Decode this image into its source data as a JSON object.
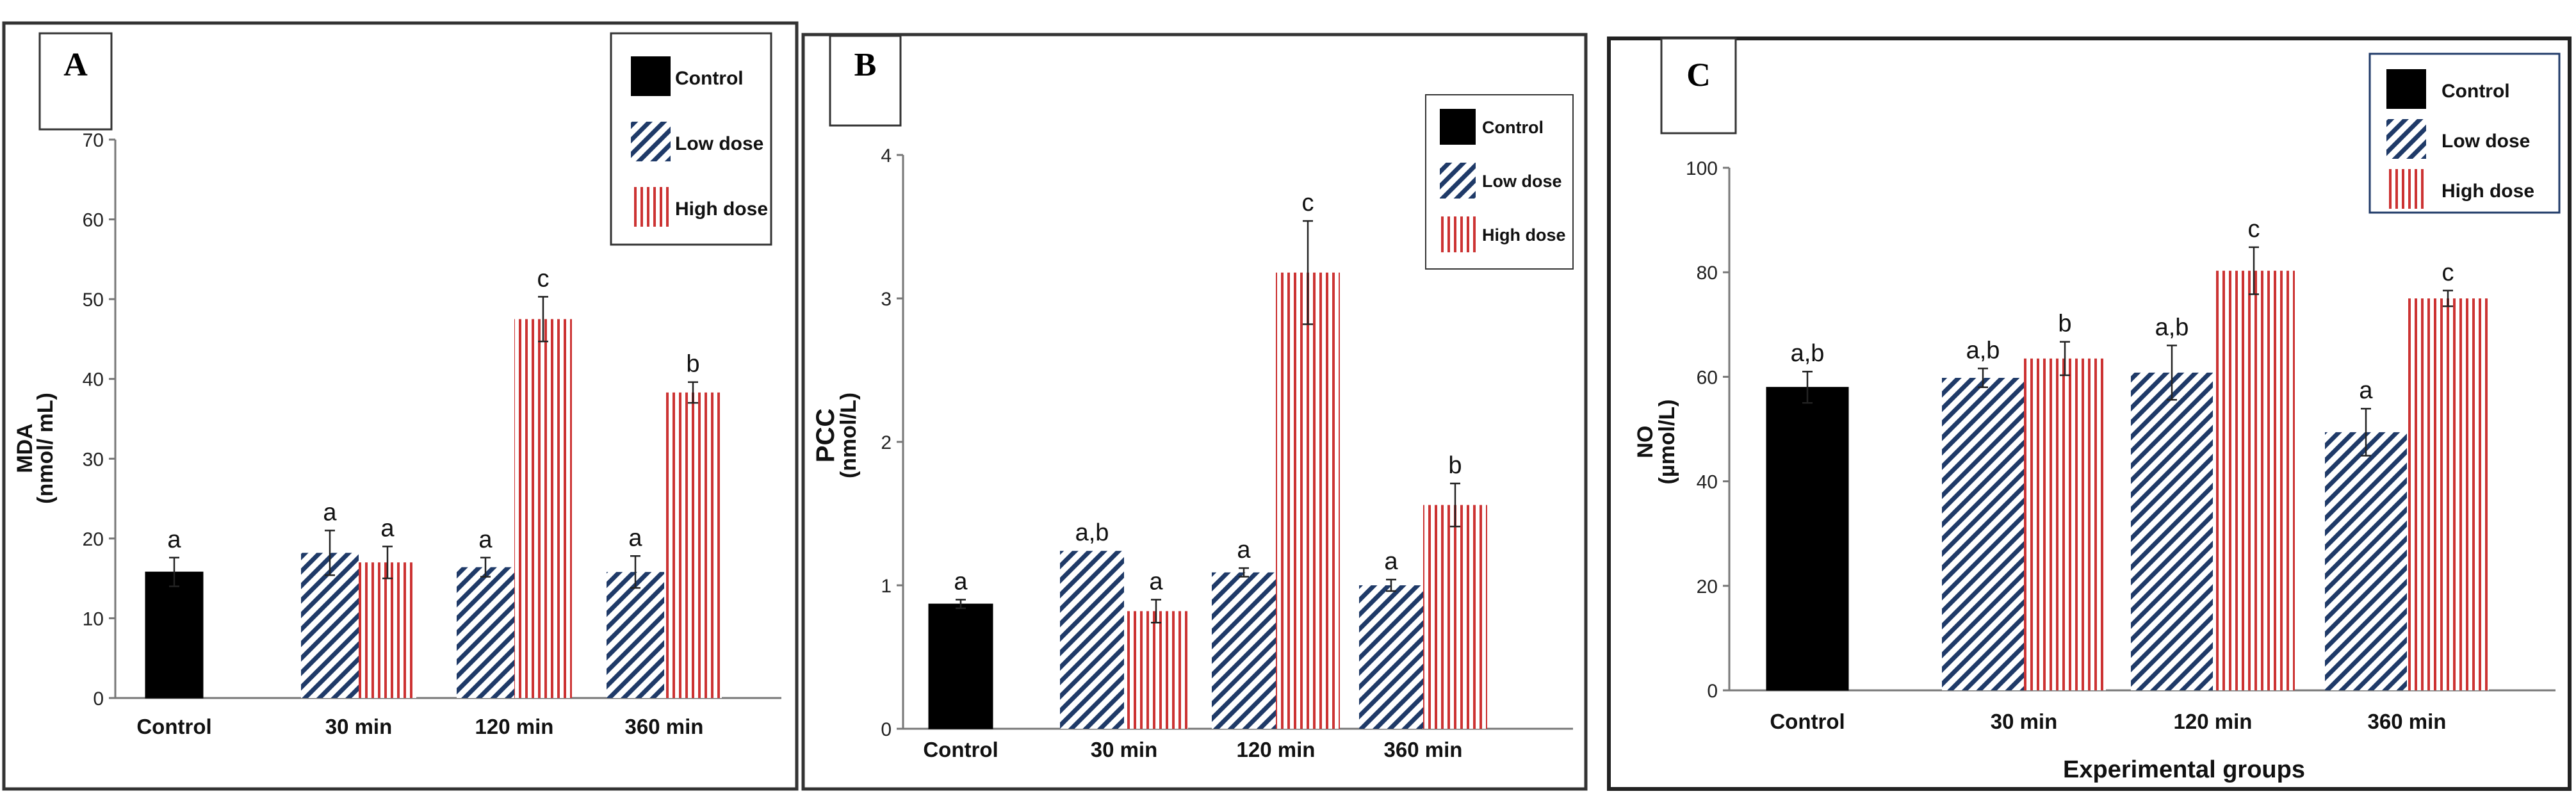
{
  "legend": {
    "entries": [
      {
        "name": "Control",
        "style": "solid",
        "color": "#000000"
      },
      {
        "name": "Low dose",
        "style": "diagonal",
        "color": "#1f3a68"
      },
      {
        "name": "High dose",
        "style": "vertical",
        "color": "#cc3333"
      }
    ]
  },
  "chart_data": [
    {
      "type": "bar",
      "panel_label": "A",
      "title": "",
      "xlabel": "",
      "ylabel": "MDA",
      "ylabel_unit": "(nmol/ mL)",
      "ylim": [
        0,
        70
      ],
      "yticks": [
        0,
        10,
        20,
        30,
        40,
        50,
        60,
        70
      ],
      "ytick_labels": [
        "0",
        "10",
        "20",
        "30",
        "40",
        "50",
        "60",
        "70"
      ],
      "categories": [
        "Control",
        "30 min",
        "120 min",
        "360 min"
      ],
      "series": [
        {
          "name": "Control",
          "values": [
            15.8,
            null,
            null,
            null
          ],
          "errors": [
            1.8,
            null,
            null,
            null
          ],
          "letters": [
            "a",
            null,
            null,
            null
          ]
        },
        {
          "name": "Low dose",
          "values": [
            null,
            18.2,
            16.4,
            15.8
          ],
          "errors": [
            null,
            2.8,
            1.2,
            2.0
          ],
          "letters": [
            null,
            "a",
            "a",
            "a"
          ]
        },
        {
          "name": "High dose",
          "values": [
            null,
            17.0,
            47.5,
            38.3
          ],
          "errors": [
            null,
            2.0,
            2.8,
            1.3
          ],
          "letters": [
            null,
            "a",
            "c",
            "b"
          ]
        }
      ],
      "legend_position": "top-right"
    },
    {
      "type": "bar",
      "panel_label": "B",
      "title": "",
      "xlabel": "",
      "ylabel": "PCC",
      "ylabel_unit": "(nmol/L)",
      "ylim": [
        0,
        4
      ],
      "yticks": [
        0,
        1,
        2,
        3,
        4
      ],
      "ytick_labels": [
        "0",
        "1",
        "2",
        "3",
        "4"
      ],
      "categories": [
        "Control",
        "30 min",
        "120 min",
        "360 min"
      ],
      "series": [
        {
          "name": "Control",
          "values": [
            0.87,
            null,
            null,
            null
          ],
          "errors": [
            0.03,
            null,
            null,
            null
          ],
          "letters": [
            "a",
            null,
            null,
            null
          ]
        },
        {
          "name": "Low dose",
          "values": [
            null,
            1.24,
            1.09,
            1.0
          ],
          "errors": [
            null,
            0.0,
            0.03,
            0.04
          ],
          "letters": [
            null,
            "a,b",
            "a",
            "a"
          ]
        },
        {
          "name": "High dose",
          "values": [
            null,
            0.82,
            3.18,
            1.56
          ],
          "errors": [
            null,
            0.08,
            0.36,
            0.15
          ],
          "letters": [
            null,
            "a",
            "c",
            "b"
          ]
        }
      ],
      "legend_position": "top-right"
    },
    {
      "type": "bar",
      "panel_label": "C",
      "title": "",
      "xlabel": "Experimental groups",
      "ylabel": "NO",
      "ylabel_unit": "(µmol/L)",
      "ylim": [
        0,
        100
      ],
      "yticks": [
        0,
        20,
        40,
        60,
        80,
        100
      ],
      "ytick_labels": [
        "0",
        "20",
        "40",
        "60",
        "80",
        "100"
      ],
      "categories": [
        "Control",
        "30 min",
        "120 min",
        "360 min"
      ],
      "series": [
        {
          "name": "Control",
          "values": [
            58.0,
            null,
            null,
            null
          ],
          "errors": [
            3.0,
            null,
            null,
            null
          ],
          "letters": [
            "a,b",
            null,
            null,
            null
          ]
        },
        {
          "name": "Low dose",
          "values": [
            null,
            59.8,
            60.8,
            49.4
          ],
          "errors": [
            null,
            1.8,
            5.2,
            4.5
          ],
          "letters": [
            null,
            "a,b",
            "a,b",
            "a"
          ]
        },
        {
          "name": "High dose",
          "values": [
            null,
            63.5,
            80.3,
            75.0
          ],
          "errors": [
            null,
            3.2,
            4.5,
            1.5
          ],
          "letters": [
            null,
            "b",
            "c",
            "c"
          ]
        }
      ],
      "legend_position": "top-right"
    }
  ]
}
